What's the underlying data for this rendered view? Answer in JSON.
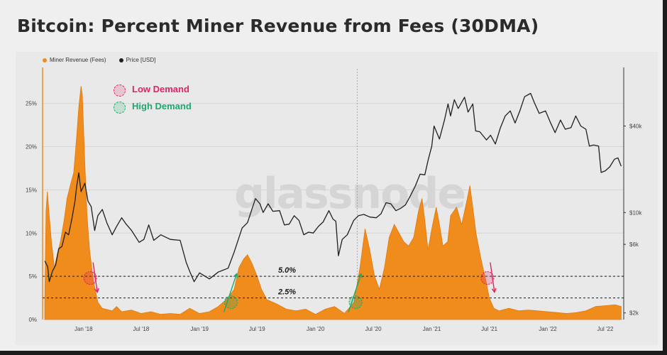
{
  "colors": {
    "fees": "#f08c1c",
    "price": "#1f1f1f",
    "low_demand": "#e0245e",
    "high_demand": "#1aaa6c"
  },
  "watermark": "glassnode",
  "chart_data": {
    "type": "area",
    "title": "Bitcoin: Percent Miner Revenue from Fees (30DMA)",
    "legend_position": "top-left",
    "series": [
      {
        "name": "Miner Revenue (Fees)",
        "type": "area",
        "axis": "left",
        "unit": "%",
        "points": [
          [
            "2017-09-01",
            2.0
          ],
          [
            "2017-09-05",
            12.5
          ],
          [
            "2017-09-09",
            14.8
          ],
          [
            "2017-09-15",
            12.0
          ],
          [
            "2017-09-22",
            9.0
          ],
          [
            "2017-10-01",
            6.0
          ],
          [
            "2017-10-10",
            7.5
          ],
          [
            "2017-10-20",
            9.0
          ],
          [
            "2017-11-01",
            11.5
          ],
          [
            "2017-11-10",
            14.0
          ],
          [
            "2017-11-20",
            15.5
          ],
          [
            "2017-12-01",
            17.0
          ],
          [
            "2017-12-10",
            21.0
          ],
          [
            "2017-12-17",
            24.5
          ],
          [
            "2017-12-24",
            27.0
          ],
          [
            "2017-12-28",
            26.0
          ],
          [
            "2018-01-05",
            18.0
          ],
          [
            "2018-01-12",
            12.0
          ],
          [
            "2018-01-20",
            8.0
          ],
          [
            "2018-02-01",
            4.5
          ],
          [
            "2018-02-15",
            2.0
          ],
          [
            "2018-03-01",
            1.3
          ],
          [
            "2018-04-01",
            1.0
          ],
          [
            "2018-04-15",
            1.5
          ],
          [
            "2018-05-01",
            0.9
          ],
          [
            "2018-06-01",
            1.1
          ],
          [
            "2018-07-01",
            0.7
          ],
          [
            "2018-08-01",
            0.9
          ],
          [
            "2018-09-01",
            0.6
          ],
          [
            "2018-10-01",
            0.7
          ],
          [
            "2018-11-01",
            0.6
          ],
          [
            "2018-12-01",
            1.3
          ],
          [
            "2019-01-01",
            0.7
          ],
          [
            "2019-02-01",
            0.9
          ],
          [
            "2019-03-01",
            1.5
          ],
          [
            "2019-04-01",
            2.5
          ],
          [
            "2019-04-20",
            3.5
          ],
          [
            "2019-05-05",
            6.0
          ],
          [
            "2019-05-20",
            7.0
          ],
          [
            "2019-06-01",
            7.5
          ],
          [
            "2019-06-15",
            6.5
          ],
          [
            "2019-07-01",
            5.0
          ],
          [
            "2019-07-15",
            3.5
          ],
          [
            "2019-08-01",
            2.3
          ],
          [
            "2019-09-01",
            1.8
          ],
          [
            "2019-10-01",
            1.2
          ],
          [
            "2019-11-01",
            1.0
          ],
          [
            "2019-12-01",
            1.2
          ],
          [
            "2020-01-01",
            0.6
          ],
          [
            "2020-02-01",
            1.2
          ],
          [
            "2020-03-01",
            1.5
          ],
          [
            "2020-04-01",
            0.7
          ],
          [
            "2020-05-01",
            2.0
          ],
          [
            "2020-05-20",
            6.0
          ],
          [
            "2020-06-05",
            10.5
          ],
          [
            "2020-06-20",
            8.0
          ],
          [
            "2020-07-05",
            5.0
          ],
          [
            "2020-07-20",
            3.5
          ],
          [
            "2020-08-05",
            6.0
          ],
          [
            "2020-08-20",
            9.5
          ],
          [
            "2020-09-05",
            11.0
          ],
          [
            "2020-09-20",
            10.0
          ],
          [
            "2020-10-05",
            9.0
          ],
          [
            "2020-10-20",
            8.5
          ],
          [
            "2020-11-05",
            9.5
          ],
          [
            "2020-11-20",
            12.5
          ],
          [
            "2020-12-01",
            14.0
          ],
          [
            "2020-12-10",
            11.5
          ],
          [
            "2020-12-20",
            8.0
          ],
          [
            "2021-01-01",
            10.5
          ],
          [
            "2021-01-15",
            13.0
          ],
          [
            "2021-01-25",
            11.0
          ],
          [
            "2021-02-05",
            8.5
          ],
          [
            "2021-02-20",
            9.0
          ],
          [
            "2021-03-01",
            12.0
          ],
          [
            "2021-03-20",
            13.0
          ],
          [
            "2021-04-05",
            11.0
          ],
          [
            "2021-04-20",
            13.5
          ],
          [
            "2021-05-01",
            15.5
          ],
          [
            "2021-05-10",
            13.0
          ],
          [
            "2021-05-20",
            10.0
          ],
          [
            "2021-06-05",
            7.0
          ],
          [
            "2021-06-20",
            4.5
          ],
          [
            "2021-07-01",
            2.5
          ],
          [
            "2021-07-15",
            1.3
          ],
          [
            "2021-08-01",
            1.0
          ],
          [
            "2021-09-01",
            1.3
          ],
          [
            "2021-10-01",
            1.0
          ],
          [
            "2021-11-01",
            1.1
          ],
          [
            "2021-12-01",
            1.0
          ],
          [
            "2022-01-01",
            0.9
          ],
          [
            "2022-02-01",
            0.8
          ],
          [
            "2022-03-01",
            0.7
          ],
          [
            "2022-04-01",
            0.8
          ],
          [
            "2022-05-01",
            1.0
          ],
          [
            "2022-06-01",
            1.5
          ],
          [
            "2022-07-01",
            1.6
          ],
          [
            "2022-08-01",
            1.7
          ],
          [
            "2022-08-20",
            1.5
          ]
        ]
      },
      {
        "name": "Price [USD]",
        "type": "line",
        "axis": "right",
        "unit": "USD",
        "points": [
          [
            "2017-09-01",
            4600
          ],
          [
            "2017-09-10",
            4200
          ],
          [
            "2017-09-15",
            3300
          ],
          [
            "2017-09-25",
            3900
          ],
          [
            "2017-10-05",
            4300
          ],
          [
            "2017-10-15",
            5600
          ],
          [
            "2017-10-25",
            5800
          ],
          [
            "2017-11-05",
            7300
          ],
          [
            "2017-11-15",
            7000
          ],
          [
            "2017-11-25",
            9000
          ],
          [
            "2017-12-05",
            12000
          ],
          [
            "2017-12-10",
            15000
          ],
          [
            "2017-12-17",
            18900
          ],
          [
            "2017-12-24",
            14000
          ],
          [
            "2018-01-05",
            16000
          ],
          [
            "2018-01-15",
            12000
          ],
          [
            "2018-01-25",
            11000
          ],
          [
            "2018-02-05",
            7500
          ],
          [
            "2018-02-15",
            9500
          ],
          [
            "2018-03-01",
            10500
          ],
          [
            "2018-03-15",
            8500
          ],
          [
            "2018-04-01",
            7000
          ],
          [
            "2018-04-15",
            8000
          ],
          [
            "2018-05-01",
            9200
          ],
          [
            "2018-05-15",
            8300
          ],
          [
            "2018-06-01",
            7500
          ],
          [
            "2018-06-25",
            6200
          ],
          [
            "2018-07-10",
            6500
          ],
          [
            "2018-07-25",
            8200
          ],
          [
            "2018-08-10",
            6400
          ],
          [
            "2018-09-01",
            7000
          ],
          [
            "2018-10-01",
            6500
          ],
          [
            "2018-11-01",
            6400
          ],
          [
            "2018-11-20",
            4500
          ],
          [
            "2018-12-01",
            3900
          ],
          [
            "2018-12-15",
            3300
          ],
          [
            "2019-01-01",
            3800
          ],
          [
            "2019-02-01",
            3450
          ],
          [
            "2019-03-01",
            3850
          ],
          [
            "2019-04-01",
            4100
          ],
          [
            "2019-04-20",
            5300
          ],
          [
            "2019-05-15",
            7800
          ],
          [
            "2019-06-01",
            8500
          ],
          [
            "2019-06-26",
            12500
          ],
          [
            "2019-07-10",
            11500
          ],
          [
            "2019-07-20",
            10000
          ],
          [
            "2019-08-05",
            11500
          ],
          [
            "2019-08-20",
            10200
          ],
          [
            "2019-09-10",
            10300
          ],
          [
            "2019-09-25",
            8200
          ],
          [
            "2019-10-10",
            8300
          ],
          [
            "2019-10-26",
            9500
          ],
          [
            "2019-11-10",
            8800
          ],
          [
            "2019-11-25",
            7000
          ],
          [
            "2019-12-10",
            7300
          ],
          [
            "2019-12-25",
            7200
          ],
          [
            "2020-01-10",
            8000
          ],
          [
            "2020-01-25",
            8600
          ],
          [
            "2020-02-12",
            10300
          ],
          [
            "2020-02-25",
            9000
          ],
          [
            "2020-03-05",
            8700
          ],
          [
            "2020-03-13",
            5000
          ],
          [
            "2020-03-25",
            6500
          ],
          [
            "2020-04-10",
            7000
          ],
          [
            "2020-04-30",
            8800
          ],
          [
            "2020-05-15",
            9500
          ],
          [
            "2020-06-01",
            9700
          ],
          [
            "2020-06-20",
            9300
          ],
          [
            "2020-07-10",
            9200
          ],
          [
            "2020-07-25",
            9800
          ],
          [
            "2020-08-10",
            11700
          ],
          [
            "2020-08-25",
            11500
          ],
          [
            "2020-09-10",
            10300
          ],
          [
            "2020-09-25",
            10700
          ],
          [
            "2020-10-10",
            11300
          ],
          [
            "2020-10-25",
            13000
          ],
          [
            "2020-11-10",
            15300
          ],
          [
            "2020-11-25",
            18500
          ],
          [
            "2020-12-10",
            18300
          ],
          [
            "2020-12-20",
            23000
          ],
          [
            "2021-01-01",
            29000
          ],
          [
            "2021-01-08",
            40000
          ],
          [
            "2021-01-25",
            32500
          ],
          [
            "2021-02-10",
            44000
          ],
          [
            "2021-02-21",
            57000
          ],
          [
            "2021-03-01",
            47000
          ],
          [
            "2021-03-13",
            61000
          ],
          [
            "2021-03-25",
            53000
          ],
          [
            "2021-04-14",
            63500
          ],
          [
            "2021-04-25",
            50000
          ],
          [
            "2021-05-10",
            57000
          ],
          [
            "2021-05-19",
            37000
          ],
          [
            "2021-06-01",
            36500
          ],
          [
            "2021-06-22",
            32000
          ],
          [
            "2021-07-05",
            34500
          ],
          [
            "2021-07-20",
            30000
          ],
          [
            "2021-08-05",
            39000
          ],
          [
            "2021-08-20",
            47000
          ],
          [
            "2021-09-05",
            51000
          ],
          [
            "2021-09-20",
            42000
          ],
          [
            "2021-10-05",
            51000
          ],
          [
            "2021-10-20",
            64000
          ],
          [
            "2021-11-08",
            67500
          ],
          [
            "2021-11-20",
            58000
          ],
          [
            "2021-12-05",
            49000
          ],
          [
            "2021-12-25",
            51000
          ],
          [
            "2022-01-10",
            42000
          ],
          [
            "2022-01-24",
            36000
          ],
          [
            "2022-02-10",
            44000
          ],
          [
            "2022-02-25",
            38000
          ],
          [
            "2022-03-15",
            39000
          ],
          [
            "2022-03-30",
            47000
          ],
          [
            "2022-04-15",
            40000
          ],
          [
            "2022-05-01",
            38000
          ],
          [
            "2022-05-12",
            29000
          ],
          [
            "2022-05-25",
            29500
          ],
          [
            "2022-06-10",
            29000
          ],
          [
            "2022-06-18",
            19000
          ],
          [
            "2022-07-01",
            19500
          ],
          [
            "2022-07-15",
            20800
          ],
          [
            "2022-07-30",
            23500
          ],
          [
            "2022-08-10",
            24000
          ],
          [
            "2022-08-20",
            21000
          ]
        ]
      }
    ],
    "x_ticks": [
      "Jan '18",
      "Jul '18",
      "Jan '19",
      "Jul '19",
      "Jan '20",
      "Jul '20",
      "Jan '21",
      "Jul '21",
      "Jan '22",
      "Jul '22"
    ],
    "x_tick_dates": [
      "2018-01-01",
      "2018-07-01",
      "2019-01-01",
      "2019-07-01",
      "2020-01-01",
      "2020-07-01",
      "2021-01-01",
      "2021-07-01",
      "2022-01-01",
      "2022-07-01"
    ],
    "x_range": [
      "2017-08-25",
      "2022-08-28"
    ],
    "y_left": {
      "ticks": [
        0,
        5,
        10,
        15,
        20,
        25
      ],
      "tick_labels": [
        "0%",
        "5%",
        "10%",
        "15%",
        "20%",
        "25%"
      ],
      "range": [
        0,
        29
      ]
    },
    "y_right": {
      "scale": "log",
      "ticks": [
        2000,
        6000,
        10000,
        40000
      ],
      "tick_labels": [
        "$2k",
        "$6k",
        "$10k",
        "$40k"
      ],
      "range": [
        1800,
        100000
      ]
    },
    "reference_lines": [
      {
        "value": 5.0,
        "label": "5.0%",
        "style": "dashed"
      },
      {
        "value": 2.5,
        "label": "2.5%",
        "style": "dashed"
      }
    ],
    "vertical_marker": "2020-05-11",
    "annotations": {
      "legend": [
        {
          "label": "Low Demand",
          "kind": "low"
        },
        {
          "label": "High Demand",
          "kind": "high"
        }
      ],
      "markers": [
        {
          "kind": "low",
          "date": "2018-01-22",
          "value": 4.8,
          "arrow": "down"
        },
        {
          "kind": "high",
          "date": "2019-04-10",
          "value": 2.0,
          "arrow": "up"
        },
        {
          "kind": "high",
          "date": "2020-05-06",
          "value": 2.0,
          "arrow": "up"
        },
        {
          "kind": "low",
          "date": "2021-06-25",
          "value": 4.8,
          "arrow": "down"
        }
      ]
    }
  }
}
